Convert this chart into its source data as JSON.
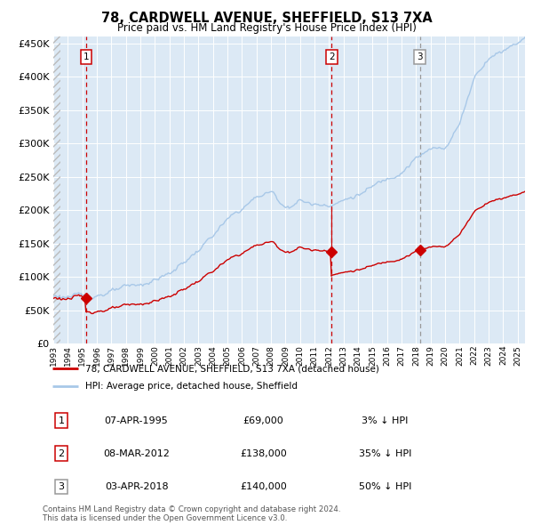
{
  "title": "78, CARDWELL AVENUE, SHEFFIELD, S13 7XA",
  "subtitle": "Price paid vs. HM Land Registry's House Price Index (HPI)",
  "plot_bg_color": "#dce9f5",
  "hpi_line_color": "#a8c8e8",
  "property_line_color": "#cc0000",
  "marker_color": "#cc0000",
  "vline1_color": "#cc0000",
  "vline2_color": "#cc0000",
  "vline3_color": "#999999",
  "yticks": [
    0,
    50000,
    100000,
    150000,
    200000,
    250000,
    300000,
    350000,
    400000,
    450000
  ],
  "ytick_labels": [
    "£0",
    "£50K",
    "£100K",
    "£150K",
    "£200K",
    "£250K",
    "£300K",
    "£350K",
    "£400K",
    "£450K"
  ],
  "sale1_date_num": 1995.27,
  "sale1_price": 69000,
  "sale2_date_num": 2012.18,
  "sale2_price": 138000,
  "sale3_date_num": 2018.25,
  "sale3_price": 140000,
  "legend_entry1": "78, CARDWELL AVENUE, SHEFFIELD, S13 7XA (detached house)",
  "legend_entry2": "HPI: Average price, detached house, Sheffield",
  "table_rows": [
    [
      "1",
      "07-APR-1995",
      "£69,000",
      "3% ↓ HPI"
    ],
    [
      "2",
      "08-MAR-2012",
      "£138,000",
      "35% ↓ HPI"
    ],
    [
      "3",
      "03-APR-2018",
      "£140,000",
      "50% ↓ HPI"
    ]
  ],
  "footnote": "Contains HM Land Registry data © Crown copyright and database right 2024.\nThis data is licensed under the Open Government Licence v3.0.",
  "xmin": 1993,
  "xmax": 2025.5,
  "ymin": 0,
  "ymax": 460000
}
